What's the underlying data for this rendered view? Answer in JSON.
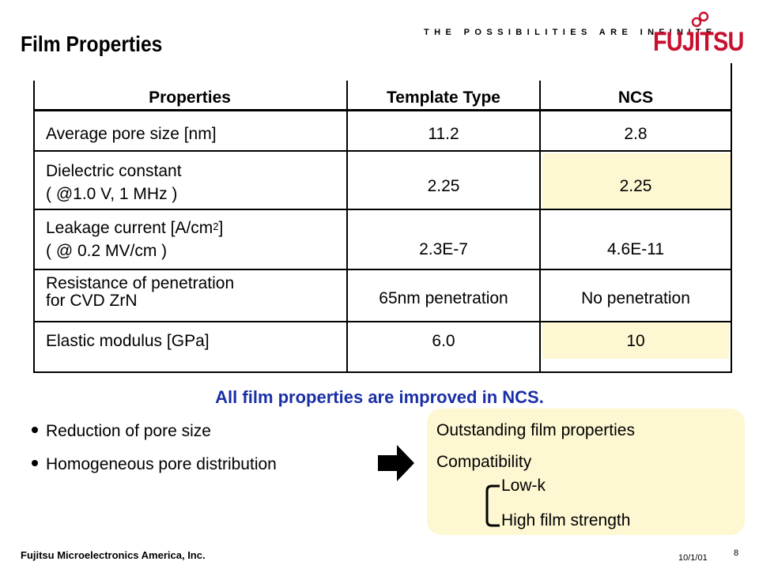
{
  "header": {
    "title": "Film Properties",
    "tagline": "THE POSSIBILITIES ARE INFINITE",
    "logo_text": "FUJITSU",
    "logo_color": "#c8102e"
  },
  "table": {
    "headers": [
      "Properties",
      "Template Type",
      "NCS"
    ],
    "rows": [
      {
        "property": [
          "Average pore size [nm]"
        ],
        "template": "11.2",
        "ncs": "2.8"
      },
      {
        "property": [
          "Dielectric constant",
          "( @1.0 V, 1 MHz )"
        ],
        "template": "2.25",
        "ncs": "2.25"
      },
      {
        "property": [
          "Leakage current [A/cm",
          "2",
          "]",
          "( @ 0.2 MV/cm )"
        ],
        "template": "2.3E-7",
        "ncs": "4.6E-11"
      },
      {
        "property": [
          "Resistance of penetration",
          "for CVD ZrN"
        ],
        "template": "65nm penetration",
        "ncs": "No penetration"
      },
      {
        "property": [
          "Elastic modulus [GPa]"
        ],
        "template": "6.0",
        "ncs": "10"
      }
    ],
    "highlight_color": "#fdf7d2"
  },
  "conclusion": "All film properties are improved in NCS.",
  "conclusion_color": "#1a2fa6",
  "bullets": [
    "Reduction of pore size",
    "Homogeneous pore distribution"
  ],
  "box": {
    "title": "Outstanding film properties",
    "compatibility": "Compatibility",
    "items": [
      "Low-k",
      "High film strength"
    ]
  },
  "footer": {
    "company": "Fujitsu Microelectronics America, Inc.",
    "date": "10/1/01",
    "page": "8"
  }
}
